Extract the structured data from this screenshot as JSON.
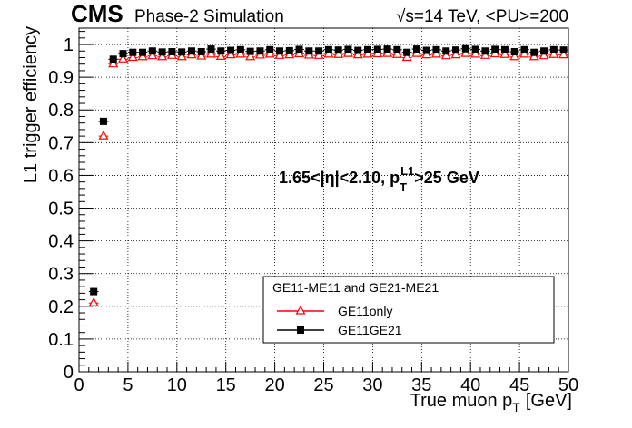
{
  "header": {
    "experiment": "CMS",
    "status": "Phase-2 Simulation",
    "energy": "√s=14 TeV, <PU>=200"
  },
  "annotation": {
    "main": "1.65<|η|<2.10, p",
    "sub": "T",
    "sup": "L1",
    "tail": ">25 GeV"
  },
  "legend": {
    "title": "GE11-ME11 and GE21-ME21",
    "position": "lower-right"
  },
  "chart_data": {
    "type": "scatter",
    "xlabel": "True muon p",
    "xlabel_sub": "T",
    "xlabel_unit": "[GeV]",
    "ylabel": "L1 trigger efficiency",
    "xlim": [
      0,
      50
    ],
    "ylim": [
      0,
      1.05
    ],
    "grid": true,
    "x_ticks": [
      "0",
      "5",
      "10",
      "15",
      "20",
      "25",
      "30",
      "35",
      "40",
      "45",
      "50"
    ],
    "y_ticks": [
      "0",
      "0.1",
      "0.2",
      "0.3",
      "0.4",
      "0.5",
      "0.6",
      "0.7",
      "0.8",
      "0.9",
      "1"
    ],
    "x": [
      1.5,
      2.5,
      3.5,
      4.5,
      5.5,
      6.5,
      7.5,
      8.5,
      9.5,
      10.5,
      11.5,
      12.5,
      13.5,
      14.5,
      15.5,
      16.5,
      17.5,
      18.5,
      19.5,
      20.5,
      21.5,
      22.5,
      23.5,
      24.5,
      25.5,
      26.5,
      27.5,
      28.5,
      29.5,
      30.5,
      31.5,
      32.5,
      33.5,
      34.5,
      35.5,
      36.5,
      37.5,
      38.5,
      39.5,
      40.5,
      41.5,
      42.5,
      43.5,
      44.5,
      45.5,
      46.5,
      47.5,
      48.5,
      49.5
    ],
    "series": [
      {
        "name": "GE11only",
        "marker": "open-triangle",
        "color": "#ff0000",
        "values": [
          0.21,
          0.72,
          0.94,
          0.955,
          0.96,
          0.962,
          0.965,
          0.962,
          0.966,
          0.962,
          0.968,
          0.964,
          0.97,
          0.963,
          0.968,
          0.97,
          0.962,
          0.967,
          0.97,
          0.966,
          0.968,
          0.971,
          0.967,
          0.966,
          0.97,
          0.969,
          0.972,
          0.968,
          0.97,
          0.971,
          0.972,
          0.969,
          0.96,
          0.972,
          0.968,
          0.97,
          0.965,
          0.968,
          0.972,
          0.97,
          0.966,
          0.971,
          0.969,
          0.962,
          0.97,
          0.962,
          0.965,
          0.969,
          0.968
        ]
      },
      {
        "name": "GE11GE21",
        "marker": "filled-square",
        "color": "#000000",
        "values": [
          0.245,
          0.765,
          0.955,
          0.972,
          0.976,
          0.976,
          0.98,
          0.977,
          0.978,
          0.977,
          0.98,
          0.978,
          0.986,
          0.98,
          0.982,
          0.984,
          0.979,
          0.98,
          0.984,
          0.98,
          0.981,
          0.985,
          0.98,
          0.98,
          0.984,
          0.983,
          0.985,
          0.982,
          0.984,
          0.985,
          0.986,
          0.984,
          0.976,
          0.986,
          0.982,
          0.984,
          0.98,
          0.983,
          0.987,
          0.985,
          0.98,
          0.985,
          0.984,
          0.978,
          0.984,
          0.976,
          0.98,
          0.984,
          0.983
        ]
      }
    ]
  }
}
